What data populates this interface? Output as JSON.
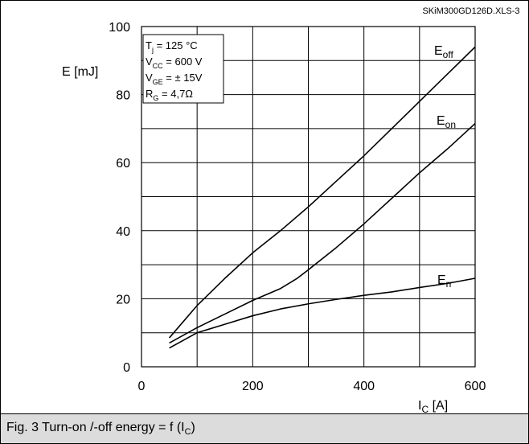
{
  "chart_data": {
    "type": "line",
    "source_id": "SKiM300GD126D.XLS-3",
    "ylabel": "E [mJ]",
    "xlabel_main": "I",
    "xlabel_sub": "C",
    "xlabel_unit": " [A]",
    "xlim": [
      0,
      600
    ],
    "ylim": [
      0,
      100
    ],
    "x_ticks": [
      {
        "value": 0,
        "label": "0"
      },
      {
        "value": 200,
        "label": "200"
      },
      {
        "value": 400,
        "label": "400"
      },
      {
        "value": 600,
        "label": "600"
      }
    ],
    "y_ticks": [
      {
        "value": 0,
        "label": "0"
      },
      {
        "value": 20,
        "label": "20"
      },
      {
        "value": 40,
        "label": "40"
      },
      {
        "value": 60,
        "label": "60"
      },
      {
        "value": 80,
        "label": "80"
      },
      {
        "value": 100,
        "label": "100"
      }
    ],
    "grid": true,
    "grid_x_step": 100,
    "grid_y_step": 10,
    "conditions": [
      {
        "main": "T",
        "sub": "j",
        "rest": "   = 125 °C"
      },
      {
        "main": "V",
        "sub": "CC",
        "rest": " = 600 V"
      },
      {
        "main": "V",
        "sub": "GE",
        "rest": " = ± 15V"
      },
      {
        "main": "R",
        "sub": "G",
        "rest": " = 4,7Ω"
      }
    ],
    "series": [
      {
        "name": "E",
        "sub": "off",
        "x": [
          50,
          100,
          150,
          200,
          250,
          300,
          350,
          400,
          450,
          500,
          550,
          600
        ],
        "y": [
          8.5,
          18,
          26,
          33.5,
          40,
          47,
          54.5,
          62,
          70,
          78,
          86,
          94
        ]
      },
      {
        "name": "E",
        "sub": "on",
        "x": [
          50,
          100,
          150,
          200,
          250,
          280,
          300,
          350,
          400,
          450,
          500,
          550,
          600
        ],
        "y": [
          7,
          11.5,
          15.5,
          19.5,
          23,
          26,
          28.5,
          35,
          42,
          49.5,
          57,
          64,
          71.5
        ]
      },
      {
        "name": "E",
        "sub": "rr",
        "x": [
          50,
          100,
          150,
          200,
          250,
          300,
          350,
          400,
          450,
          500,
          550,
          600
        ],
        "y": [
          5.5,
          10,
          12.5,
          15,
          17,
          18.5,
          19.8,
          21,
          22,
          23.3,
          24.5,
          26
        ]
      }
    ]
  },
  "caption": {
    "prefix": "Fig. 3 Turn-on /-off energy = f (I",
    "sub": "C",
    "suffix": ")"
  }
}
